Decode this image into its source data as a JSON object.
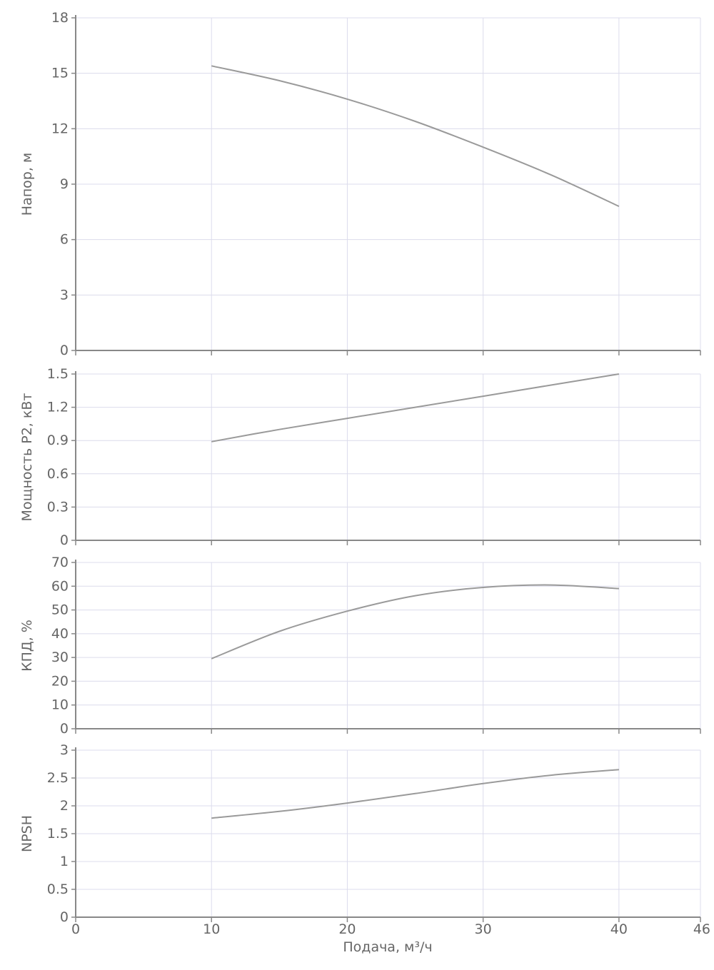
{
  "colors": {
    "curve": "#9a9a9a",
    "grid": "#dcdcec",
    "axis": "#888888",
    "text": "#666666"
  },
  "x_axis": {
    "label": "Подача, м³/ч",
    "range": [
      0,
      46
    ],
    "ticks": [
      0,
      10,
      20,
      30,
      40,
      46
    ],
    "tick_labels": [
      "0",
      "10",
      "20",
      "30",
      "40",
      "46"
    ]
  },
  "chart_data": [
    {
      "type": "line",
      "ylabel": "Напор, м",
      "ylim": [
        0,
        18
      ],
      "yticks": [
        "0",
        "3",
        "6",
        "9",
        "12",
        "15",
        "18"
      ],
      "grid": true,
      "series": [
        {
          "x": [
            10,
            15,
            20,
            25,
            30,
            35,
            40
          ],
          "y": [
            15.4,
            14.6,
            13.6,
            12.4,
            11.0,
            9.5,
            7.8
          ]
        }
      ]
    },
    {
      "type": "line",
      "ylabel": "Мощность P2, кВт",
      "ylim": [
        0,
        1.5
      ],
      "yticks": [
        "0",
        "0.3",
        "0.6",
        "0.9",
        "1.2",
        "1.5"
      ],
      "grid": true,
      "series": [
        {
          "x": [
            10,
            15,
            20,
            25,
            30,
            35,
            40
          ],
          "y": [
            0.89,
            1.0,
            1.1,
            1.2,
            1.3,
            1.4,
            1.5
          ]
        }
      ]
    },
    {
      "type": "line",
      "ylabel": "КПД, %",
      "ylim": [
        0,
        70
      ],
      "yticks": [
        "0",
        "10",
        "20",
        "30",
        "40",
        "50",
        "60",
        "70"
      ],
      "grid": true,
      "series": [
        {
          "x": [
            10,
            15,
            20,
            25,
            30,
            35,
            40
          ],
          "y": [
            29.5,
            41,
            49.5,
            56,
            59.5,
            60.5,
            59
          ]
        }
      ]
    },
    {
      "type": "line",
      "ylabel": "NPSH",
      "ylim": [
        0,
        3
      ],
      "yticks": [
        "0",
        "0.5",
        "1",
        "1.5",
        "2",
        "2.5",
        "3"
      ],
      "grid": true,
      "series": [
        {
          "x": [
            10,
            15,
            20,
            25,
            30,
            35,
            40
          ],
          "y": [
            1.78,
            1.9,
            2.05,
            2.22,
            2.4,
            2.55,
            2.65
          ]
        }
      ]
    }
  ]
}
